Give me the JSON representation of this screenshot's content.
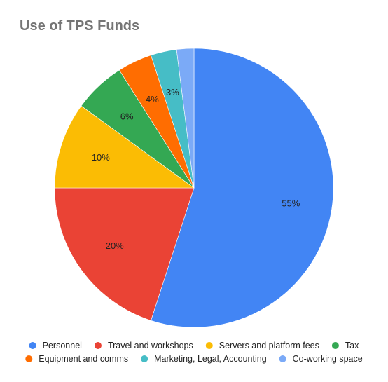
{
  "chart_data": {
    "type": "pie",
    "title": "Use of TPS Funds",
    "slices": [
      {
        "label": "Personnel",
        "value": 55,
        "display": "55%",
        "color": "#4285F4"
      },
      {
        "label": "Travel and workshops",
        "value": 20,
        "display": "20%",
        "color": "#EA4335"
      },
      {
        "label": "Servers and platform fees",
        "value": 10,
        "display": "10%",
        "color": "#FBBC04"
      },
      {
        "label": "Tax",
        "value": 6,
        "display": "6%",
        "color": "#34A853"
      },
      {
        "label": "Equipment and comms",
        "value": 4,
        "display": "4%",
        "color": "#FF6D01"
      },
      {
        "label": "Marketing, Legal, Accounting",
        "value": 3,
        "display": "3%",
        "color": "#46BDC6"
      },
      {
        "label": "Co-working space",
        "value": 2,
        "display": "",
        "color": "#7BAAF7"
      }
    ],
    "start_angle": "12 o'clock",
    "direction": "clockwise",
    "legend_position": "bottom"
  }
}
